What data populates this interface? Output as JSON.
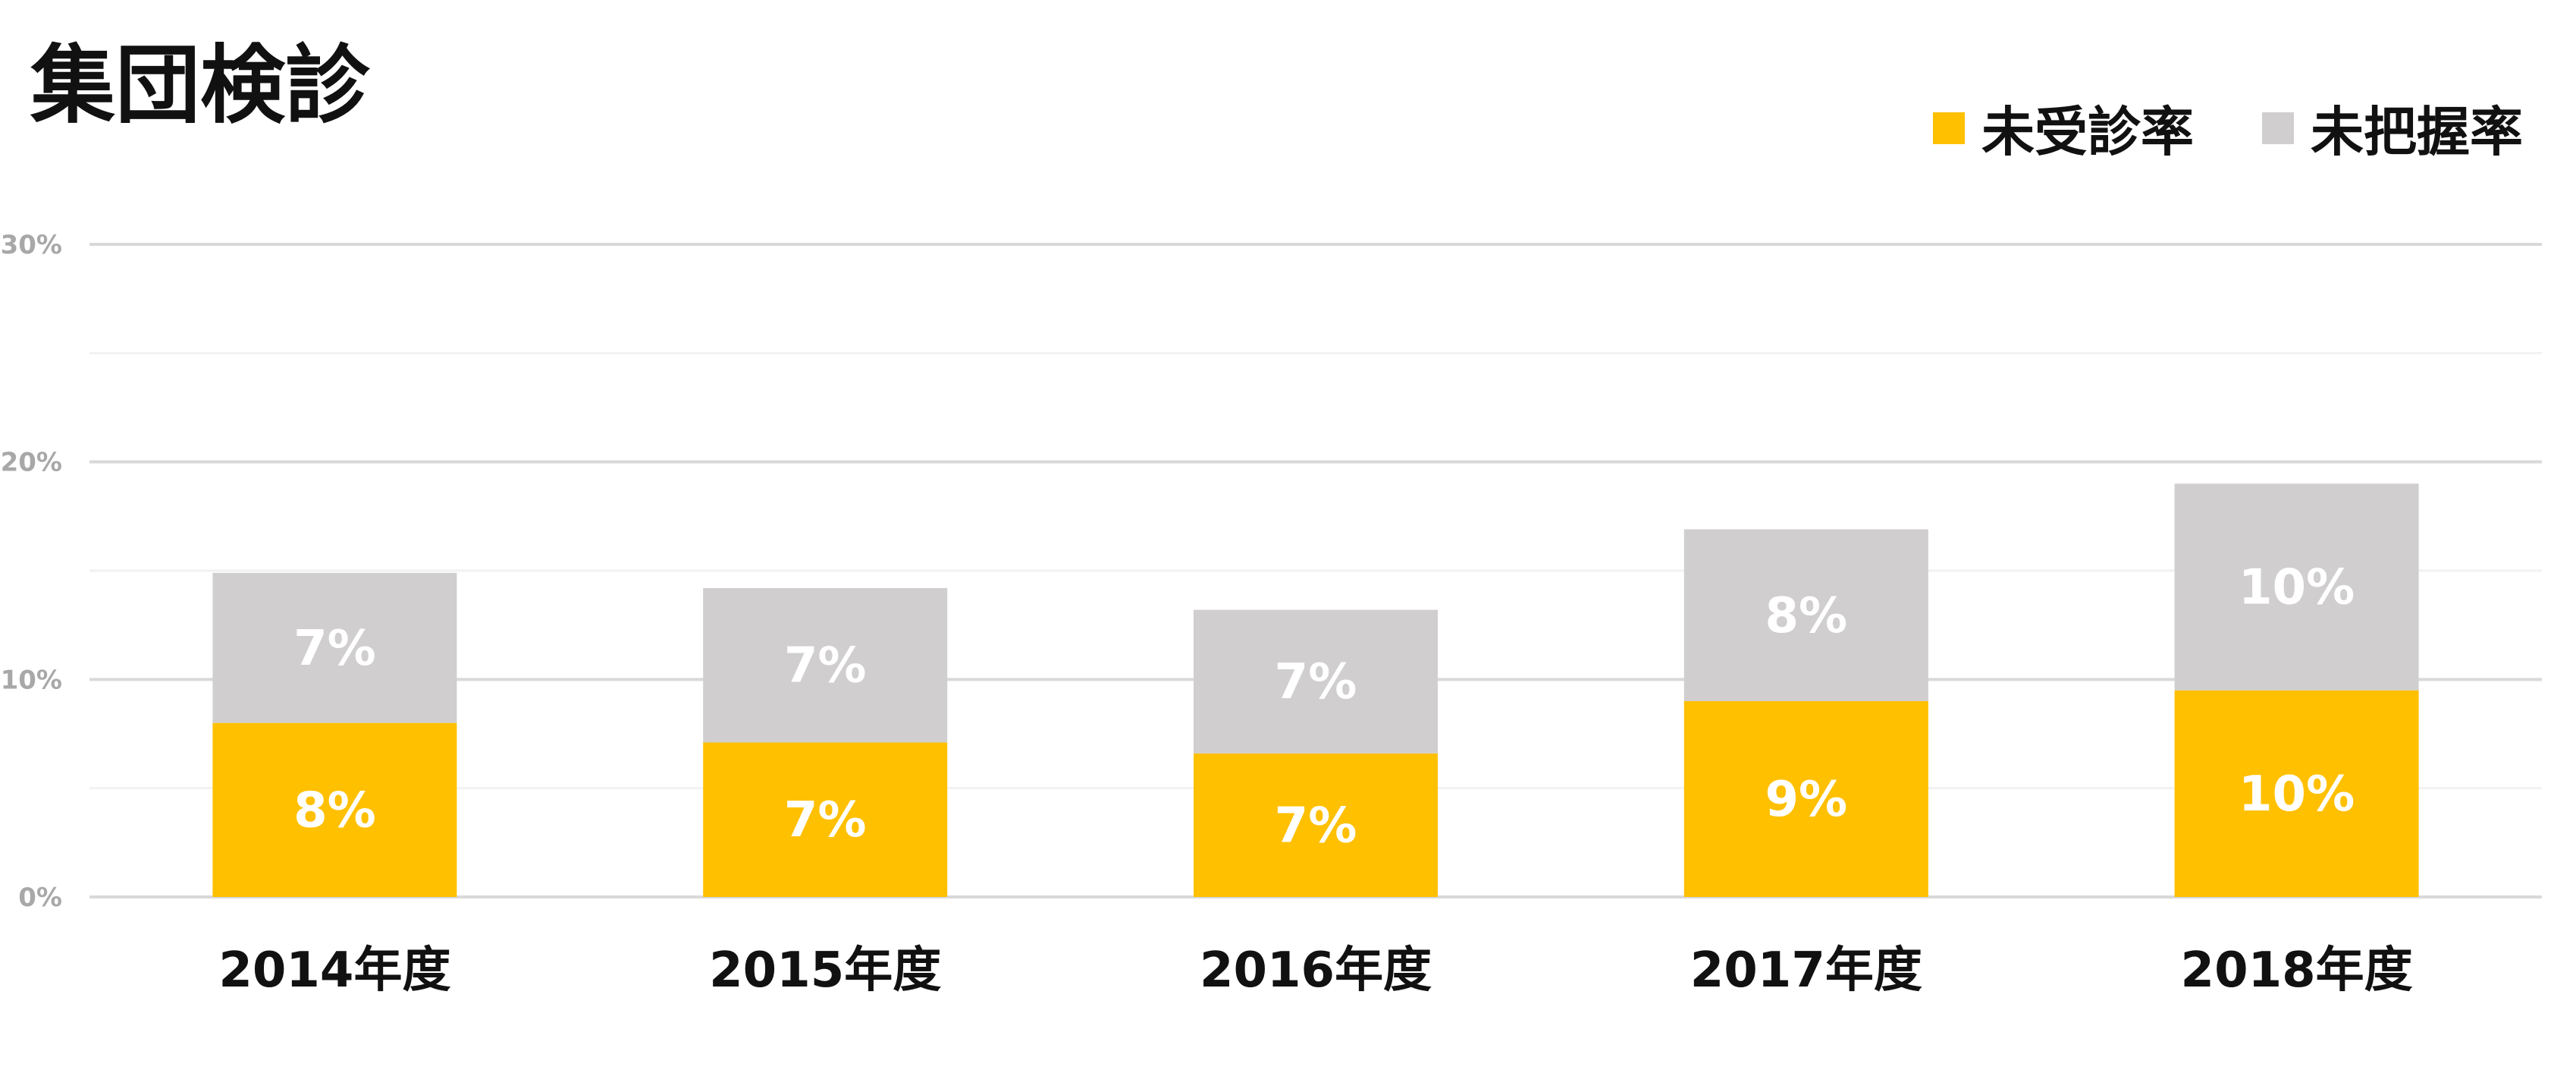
{
  "chart_data": {
    "type": "bar",
    "stacked": true,
    "title": "集団検診",
    "xlabel": "",
    "ylabel": "",
    "categories": [
      "2014年度",
      "2015年度",
      "2016年度",
      "2017年度",
      "2018年度"
    ],
    "series": [
      {
        "name": "未受診率",
        "color": "#FFC000",
        "values": [
          8,
          7.1,
          6.6,
          9,
          9.5
        ],
        "labels": [
          "8%",
          "7%",
          "7%",
          "9%",
          "10%"
        ]
      },
      {
        "name": "未把握率",
        "color": "#D0CECE",
        "values": [
          6.9,
          7.1,
          6.6,
          7.9,
          9.5
        ],
        "labels": [
          "7%",
          "7%",
          "7%",
          "8%",
          "10%"
        ]
      }
    ],
    "ylim": [
      0,
      30
    ],
    "yticks": [
      0,
      10,
      20,
      30
    ],
    "ytick_labels": [
      "0%",
      "10%",
      "20%",
      "30%"
    ],
    "grid": true,
    "legend_position": "top-right"
  }
}
